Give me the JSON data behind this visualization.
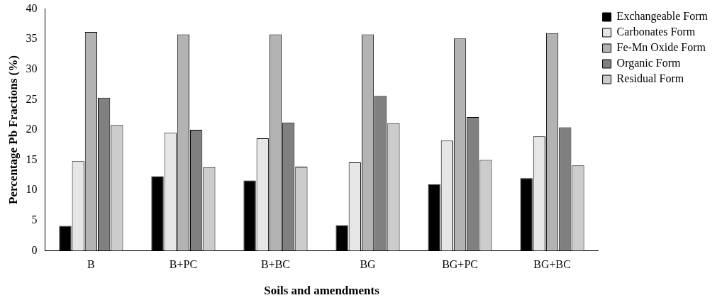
{
  "chart_data": {
    "type": "bar",
    "xlabel": "Soils and amendments",
    "ylabel": "Percentage Pb Fractions (%)",
    "categories": [
      "B",
      "B+PC",
      "B+BC",
      "BG",
      "BG+PC",
      "BG+BC"
    ],
    "series": [
      {
        "name": "Exchangeable Form",
        "color": "#000000",
        "values": [
          4.1,
          12.3,
          11.6,
          4.2,
          11.0,
          12.0
        ]
      },
      {
        "name": "Carbonates Form",
        "color": "#e6e6e6",
        "values": [
          14.8,
          19.5,
          18.6,
          14.6,
          18.2,
          18.9
        ]
      },
      {
        "name": "Fe-Mn Oxide Form",
        "color": "#b3b3b3",
        "values": [
          36.2,
          35.8,
          35.8,
          35.8,
          35.1,
          36.0
        ]
      },
      {
        "name": "Organic Form",
        "color": "#808080",
        "values": [
          25.3,
          20.0,
          21.2,
          25.6,
          22.1,
          20.4
        ]
      },
      {
        "name": "Residual Form",
        "color": "#cccccc",
        "values": [
          20.8,
          13.8,
          13.9,
          21.1,
          15.0,
          14.1
        ]
      }
    ],
    "ylim": [
      0,
      40
    ],
    "yticks": [
      0,
      5,
      10,
      15,
      20,
      25,
      30,
      35,
      40
    ],
    "grid": false,
    "legend": "top right"
  }
}
